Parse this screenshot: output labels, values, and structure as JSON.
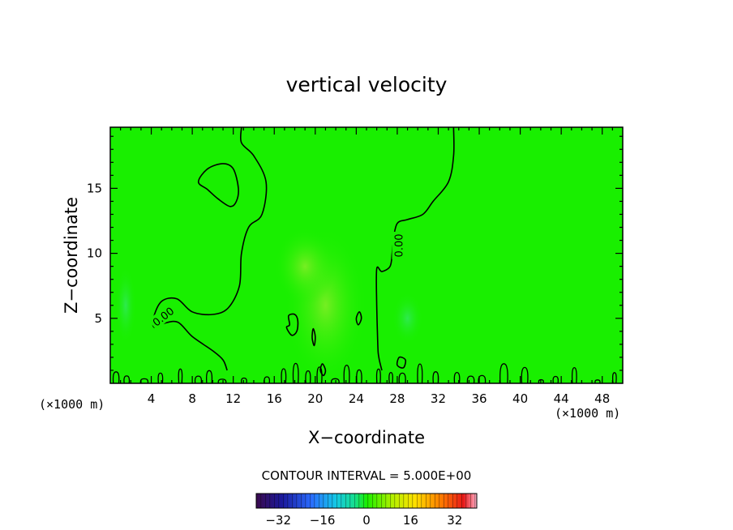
{
  "chart_data": {
    "type": "heatmap",
    "title": "vertical velocity",
    "xlabel": "X−coordinate",
    "ylabel": "Z−coordinate",
    "x_unit": "(×1000 m)",
    "y_unit": "(×1000 m)",
    "xlim": [
      0,
      50
    ],
    "ylim": [
      0,
      19.7
    ],
    "x_ticks": [
      4,
      8,
      12,
      16,
      20,
      24,
      28,
      32,
      36,
      40,
      44,
      48
    ],
    "y_ticks": [
      5,
      10,
      15
    ],
    "x_tick_labels": [
      "4",
      "8",
      "12",
      "16",
      "20",
      "24",
      "28",
      "32",
      "36",
      "40",
      "44",
      "48"
    ],
    "y_tick_labels": [
      "5",
      "10",
      "15"
    ],
    "contour_interval_text": "CONTOUR INTERVAL = 5.000E+00",
    "contour_label": "0.00",
    "colorbar": {
      "min": -40,
      "max": 40,
      "ticks": [
        -32,
        -16,
        0,
        16,
        32
      ],
      "tick_labels": [
        "−32",
        "−16",
        "0",
        "16",
        "32"
      ]
    },
    "colors": {
      "field_base": "#19ef00",
      "contour": "#000000"
    },
    "field_anomalies": [
      {
        "x": 21,
        "z": 6,
        "rx": 4,
        "rz": 6,
        "sign": "positive"
      },
      {
        "x": 19,
        "z": 9,
        "rx": 3,
        "rz": 3,
        "sign": "positive"
      },
      {
        "x": 29,
        "z": 5,
        "rx": 1.5,
        "rz": 2,
        "sign": "negative"
      },
      {
        "x": 1.5,
        "z": 6,
        "rx": 1,
        "rz": 3,
        "sign": "negative"
      }
    ],
    "contours_zero": [
      {
        "name": "main-contour",
        "closed": false,
        "points": [
          [
            12.8,
            19.7
          ],
          [
            12.8,
            18.5
          ],
          [
            14,
            17.5
          ],
          [
            15.2,
            15.5
          ],
          [
            14.8,
            13
          ],
          [
            13.5,
            12
          ],
          [
            12.8,
            10
          ],
          [
            12.6,
            7.5
          ],
          [
            11.5,
            5.8
          ],
          [
            10,
            5.3
          ],
          [
            8,
            5.5
          ],
          [
            6.5,
            6.5
          ],
          [
            5,
            6.3
          ],
          [
            4.2,
            5
          ],
          [
            4.3,
            4.3
          ],
          [
            5.2,
            4.6
          ],
          [
            6.6,
            4.7
          ],
          [
            8,
            3.6
          ],
          [
            10,
            2.5
          ],
          [
            11,
            1.8
          ],
          [
            11.4,
            1
          ]
        ]
      },
      {
        "name": "right-contour",
        "closed": false,
        "points": [
          [
            33.5,
            19.7
          ],
          [
            33.5,
            17.5
          ],
          [
            33,
            15.5
          ],
          [
            31.5,
            14
          ],
          [
            30.5,
            13
          ],
          [
            29,
            12.6
          ],
          [
            28,
            12.3
          ],
          [
            27.6,
            11
          ],
          [
            27.5,
            10
          ],
          [
            27.3,
            9
          ],
          [
            26.5,
            8.6
          ],
          [
            26,
            8.8
          ],
          [
            26,
            6
          ],
          [
            26.1,
            3
          ],
          [
            26.2,
            2
          ],
          [
            26.5,
            1
          ]
        ]
      },
      {
        "name": "closed-contour-upper-left",
        "closed": true,
        "points": [
          [
            8.6,
            15.5
          ],
          [
            9.5,
            16.5
          ],
          [
            11,
            16.9
          ],
          [
            12,
            16.5
          ],
          [
            12.5,
            15
          ],
          [
            12.3,
            14
          ],
          [
            11.7,
            13.6
          ],
          [
            10.5,
            14.2
          ],
          [
            9.5,
            14.9
          ]
        ]
      },
      {
        "name": "closed-contour-near-20-5",
        "closed": true,
        "points": [
          [
            17.4,
            5.2
          ],
          [
            18,
            5.3
          ],
          [
            18.3,
            4.8
          ],
          [
            18.2,
            4
          ],
          [
            17.7,
            3.7
          ],
          [
            17.2,
            4.3
          ],
          [
            17.5,
            4.5
          ]
        ]
      },
      {
        "name": "closed-contour-near-20-3",
        "closed": true,
        "points": [
          [
            19.8,
            4.2
          ],
          [
            20,
            3.6
          ],
          [
            19.9,
            2.9
          ],
          [
            19.7,
            3.5
          ]
        ]
      },
      {
        "name": "closed-contour-near-24-5",
        "closed": true,
        "points": [
          [
            24.3,
            5.5
          ],
          [
            24.5,
            5
          ],
          [
            24.2,
            4.5
          ],
          [
            24,
            5
          ]
        ]
      },
      {
        "name": "closed-contour-near-21-1",
        "closed": true,
        "points": [
          [
            20.7,
            1.5
          ],
          [
            21,
            1
          ],
          [
            20.8,
            0.6
          ],
          [
            20.5,
            1
          ]
        ]
      },
      {
        "name": "closed-contour-near-28-2",
        "closed": true,
        "points": [
          [
            28.2,
            2
          ],
          [
            28.8,
            1.8
          ],
          [
            28.6,
            1.2
          ],
          [
            28,
            1.4
          ]
        ]
      }
    ]
  }
}
